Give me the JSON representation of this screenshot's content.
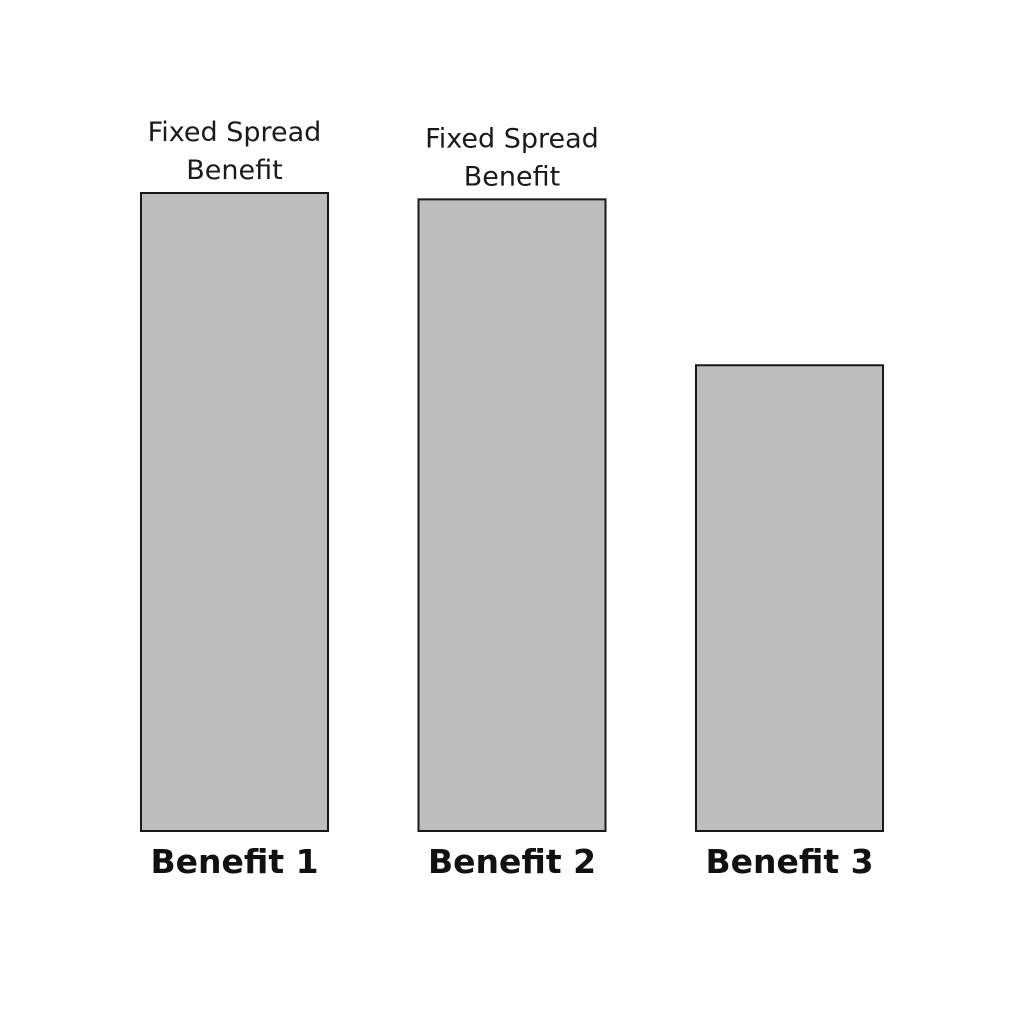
{
  "chart_data": {
    "type": "bar",
    "categories": [
      "Benefit 1",
      "Benefit 2",
      "Benefit 3"
    ],
    "values": [
      100,
      99,
      73
    ],
    "bar_labels": [
      [
        "Fixed Spread",
        "Benefit"
      ],
      [
        "Fixed Spread",
        "Benefit"
      ],
      null
    ],
    "title": "",
    "xlabel": "",
    "ylabel": "",
    "ylim": [
      0,
      100
    ],
    "grid": false,
    "legend": "none",
    "colors": {
      "bar_fill": "#bebebe",
      "bar_stroke": "#1a1a1a",
      "text": "#111111",
      "background": "#ffffff"
    }
  }
}
